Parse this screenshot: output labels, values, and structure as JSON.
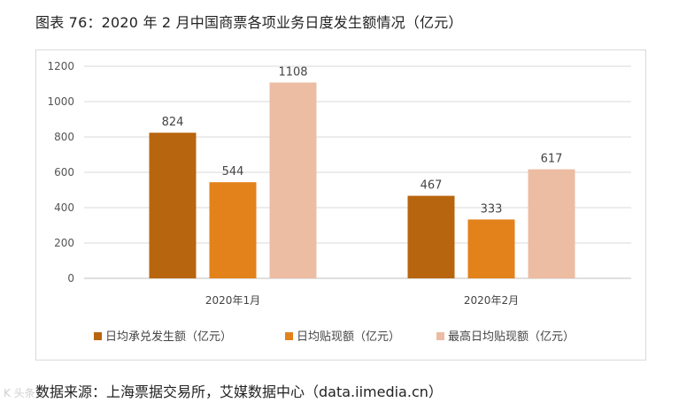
{
  "header": {
    "title": "图表 76：2020 年 2 月中国商票各项业务日度发生额情况（亿元）"
  },
  "footer": {
    "source": "数据来源：上海票据交易所，艾媒数据中心（data.iimedia.cn）",
    "watermark": "K 头条号"
  },
  "chart_data": {
    "type": "bar",
    "title": "2020 年 2 月中国商票各项业务日度发生额情况（亿元）",
    "categories": [
      "2020年1月",
      "2020年2月"
    ],
    "ylim": [
      0,
      1200
    ],
    "yticks": [
      0,
      200,
      400,
      600,
      800,
      1000,
      1200
    ],
    "grid": true,
    "legend_position": "bottom",
    "series": [
      {
        "name": "日均承兑发生额（亿元）",
        "values": [
          824,
          467
        ],
        "color": "#b8650f"
      },
      {
        "name": "日均贴现额（亿元）",
        "values": [
          544,
          333
        ],
        "color": "#e3821b"
      },
      {
        "name": "最高日均贴现额（亿元）",
        "values": [
          1108,
          617
        ],
        "color": "#ecbca3"
      }
    ]
  }
}
